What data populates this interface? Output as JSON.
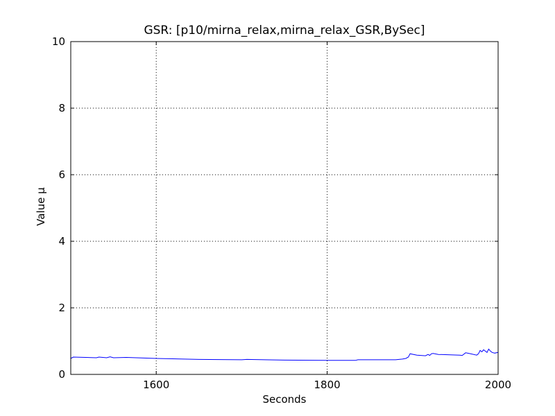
{
  "chart_data": {
    "type": "line",
    "title": "GSR: [p10/mirna_relax,mirna_relax_GSR,BySec]",
    "xlabel": "Seconds",
    "ylabel": "Value µ",
    "xlim": [
      1500,
      2000
    ],
    "ylim": [
      0,
      10
    ],
    "xticks": [
      1600,
      1800,
      2000
    ],
    "yticks": [
      0,
      2,
      4,
      6,
      8,
      10
    ],
    "grid": true,
    "series": [
      {
        "color": "#0000ff",
        "x": [
          1500,
          1503,
          1530,
          1533,
          1542,
          1546,
          1550,
          1565,
          1600,
          1650,
          1700,
          1706,
          1750,
          1800,
          1833,
          1836,
          1880,
          1888,
          1892,
          1895,
          1897,
          1905,
          1915,
          1918,
          1920,
          1922,
          1924,
          1930,
          1955,
          1958,
          1962,
          1966,
          1975,
          1977,
          1979,
          1981,
          1983,
          1985,
          1987,
          1989,
          1991,
          1993,
          1996,
          2000
        ],
        "y": [
          0.48,
          0.52,
          0.5,
          0.52,
          0.5,
          0.53,
          0.5,
          0.51,
          0.48,
          0.45,
          0.44,
          0.45,
          0.43,
          0.42,
          0.42,
          0.44,
          0.44,
          0.46,
          0.48,
          0.52,
          0.62,
          0.58,
          0.56,
          0.6,
          0.57,
          0.62,
          0.63,
          0.6,
          0.58,
          0.57,
          0.65,
          0.63,
          0.58,
          0.62,
          0.72,
          0.68,
          0.74,
          0.7,
          0.66,
          0.76,
          0.7,
          0.66,
          0.64,
          0.66
        ]
      }
    ]
  }
}
